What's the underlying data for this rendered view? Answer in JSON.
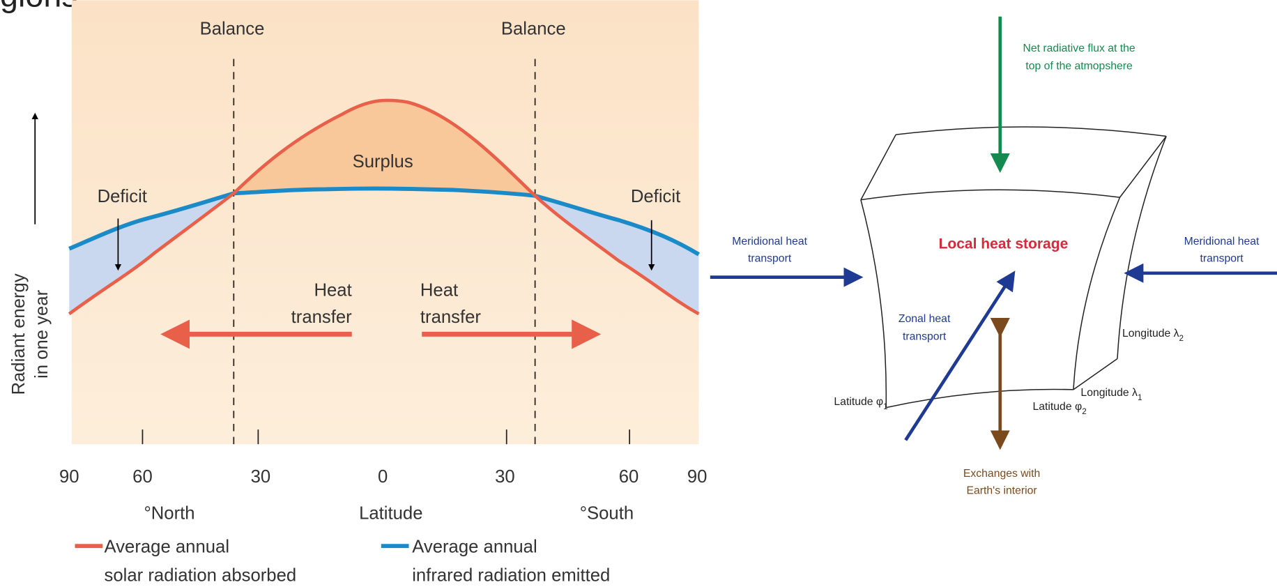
{
  "header": {
    "text": "gions"
  },
  "left_figure": {
    "y_label": [
      "Radiant energy",
      "in one year"
    ],
    "balance_labels": [
      "Balance",
      "Balance"
    ],
    "surplus": "Surplus",
    "deficit": [
      "Deficit",
      "Deficit"
    ],
    "heat_transfer": [
      [
        "Heat",
        "transfer"
      ],
      [
        "Heat",
        "transfer"
      ]
    ],
    "x_ticks": [
      "90",
      "60",
      "30",
      "0",
      "30",
      "60",
      "90"
    ],
    "x_labels": [
      "°North",
      "Latitude",
      "°South"
    ],
    "legend": [
      [
        "Average annual",
        "solar radiation absorbed"
      ],
      [
        "Average annual",
        "infrared radiation emitted"
      ]
    ]
  },
  "right_figure": {
    "top_flux": [
      "Net radiative flux at the",
      "top of the atmopshere"
    ],
    "meridional_left": [
      "Meridional heat",
      "transport"
    ],
    "meridional_right": [
      "Meridional heat",
      "transport"
    ],
    "center": "Local heat storage",
    "zonal": [
      "Zonal heat",
      "transport"
    ],
    "longitude_2": {
      "text": "Longitude λ",
      "sub": "2"
    },
    "longitude_1": {
      "text": "Longitude λ",
      "sub": "1"
    },
    "latitude_1": {
      "text": "Latitude φ",
      "sub": "1"
    },
    "latitude_2": {
      "text": "Latitude φ",
      "sub": "2"
    },
    "interior": [
      "Exchanges with",
      "Earth's interior"
    ]
  }
}
